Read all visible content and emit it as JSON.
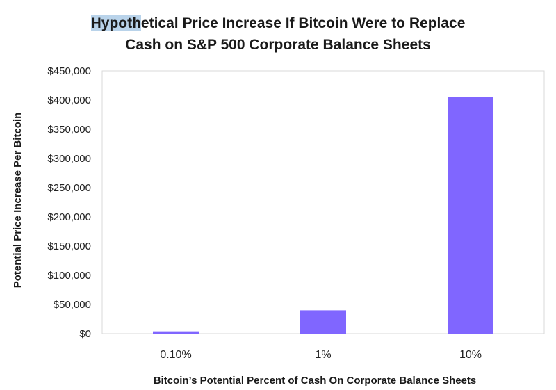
{
  "chart_data": {
    "type": "bar",
    "title": "Hypothetical Price Increase If Bitcoin Were to Replace Cash on S&P 500 Corporate Balance Sheets",
    "title_lines": {
      "line1_highlighted": "Hypoth",
      "line1_rest": "etical Price Increase If Bitcoin Were to Replace",
      "line2": "Cash on S&P 500 Corporate Balance Sheets"
    },
    "categories": [
      "0.10%",
      "1%",
      "10%"
    ],
    "values": [
      4000,
      40000,
      405000
    ],
    "xlabel": "Bitcoin’s Potential Percent of Cash On Corporate Balance Sheets",
    "ylabel": "Potential Price Increase Per Bitcoin",
    "ylim": [
      0,
      450000
    ],
    "yticks": [
      0,
      50000,
      100000,
      150000,
      200000,
      250000,
      300000,
      350000,
      400000,
      450000
    ],
    "ytick_labels": [
      "$0",
      "$50,000",
      "$100,000",
      "$150,000",
      "$200,000",
      "$250,000",
      "$300,000",
      "$350,000",
      "$400,000",
      "$450,000"
    ],
    "grid": false,
    "colors": {
      "bar": "#8066ff",
      "frame": "#d9d9d9",
      "highlight": "#b9d3ea"
    }
  }
}
